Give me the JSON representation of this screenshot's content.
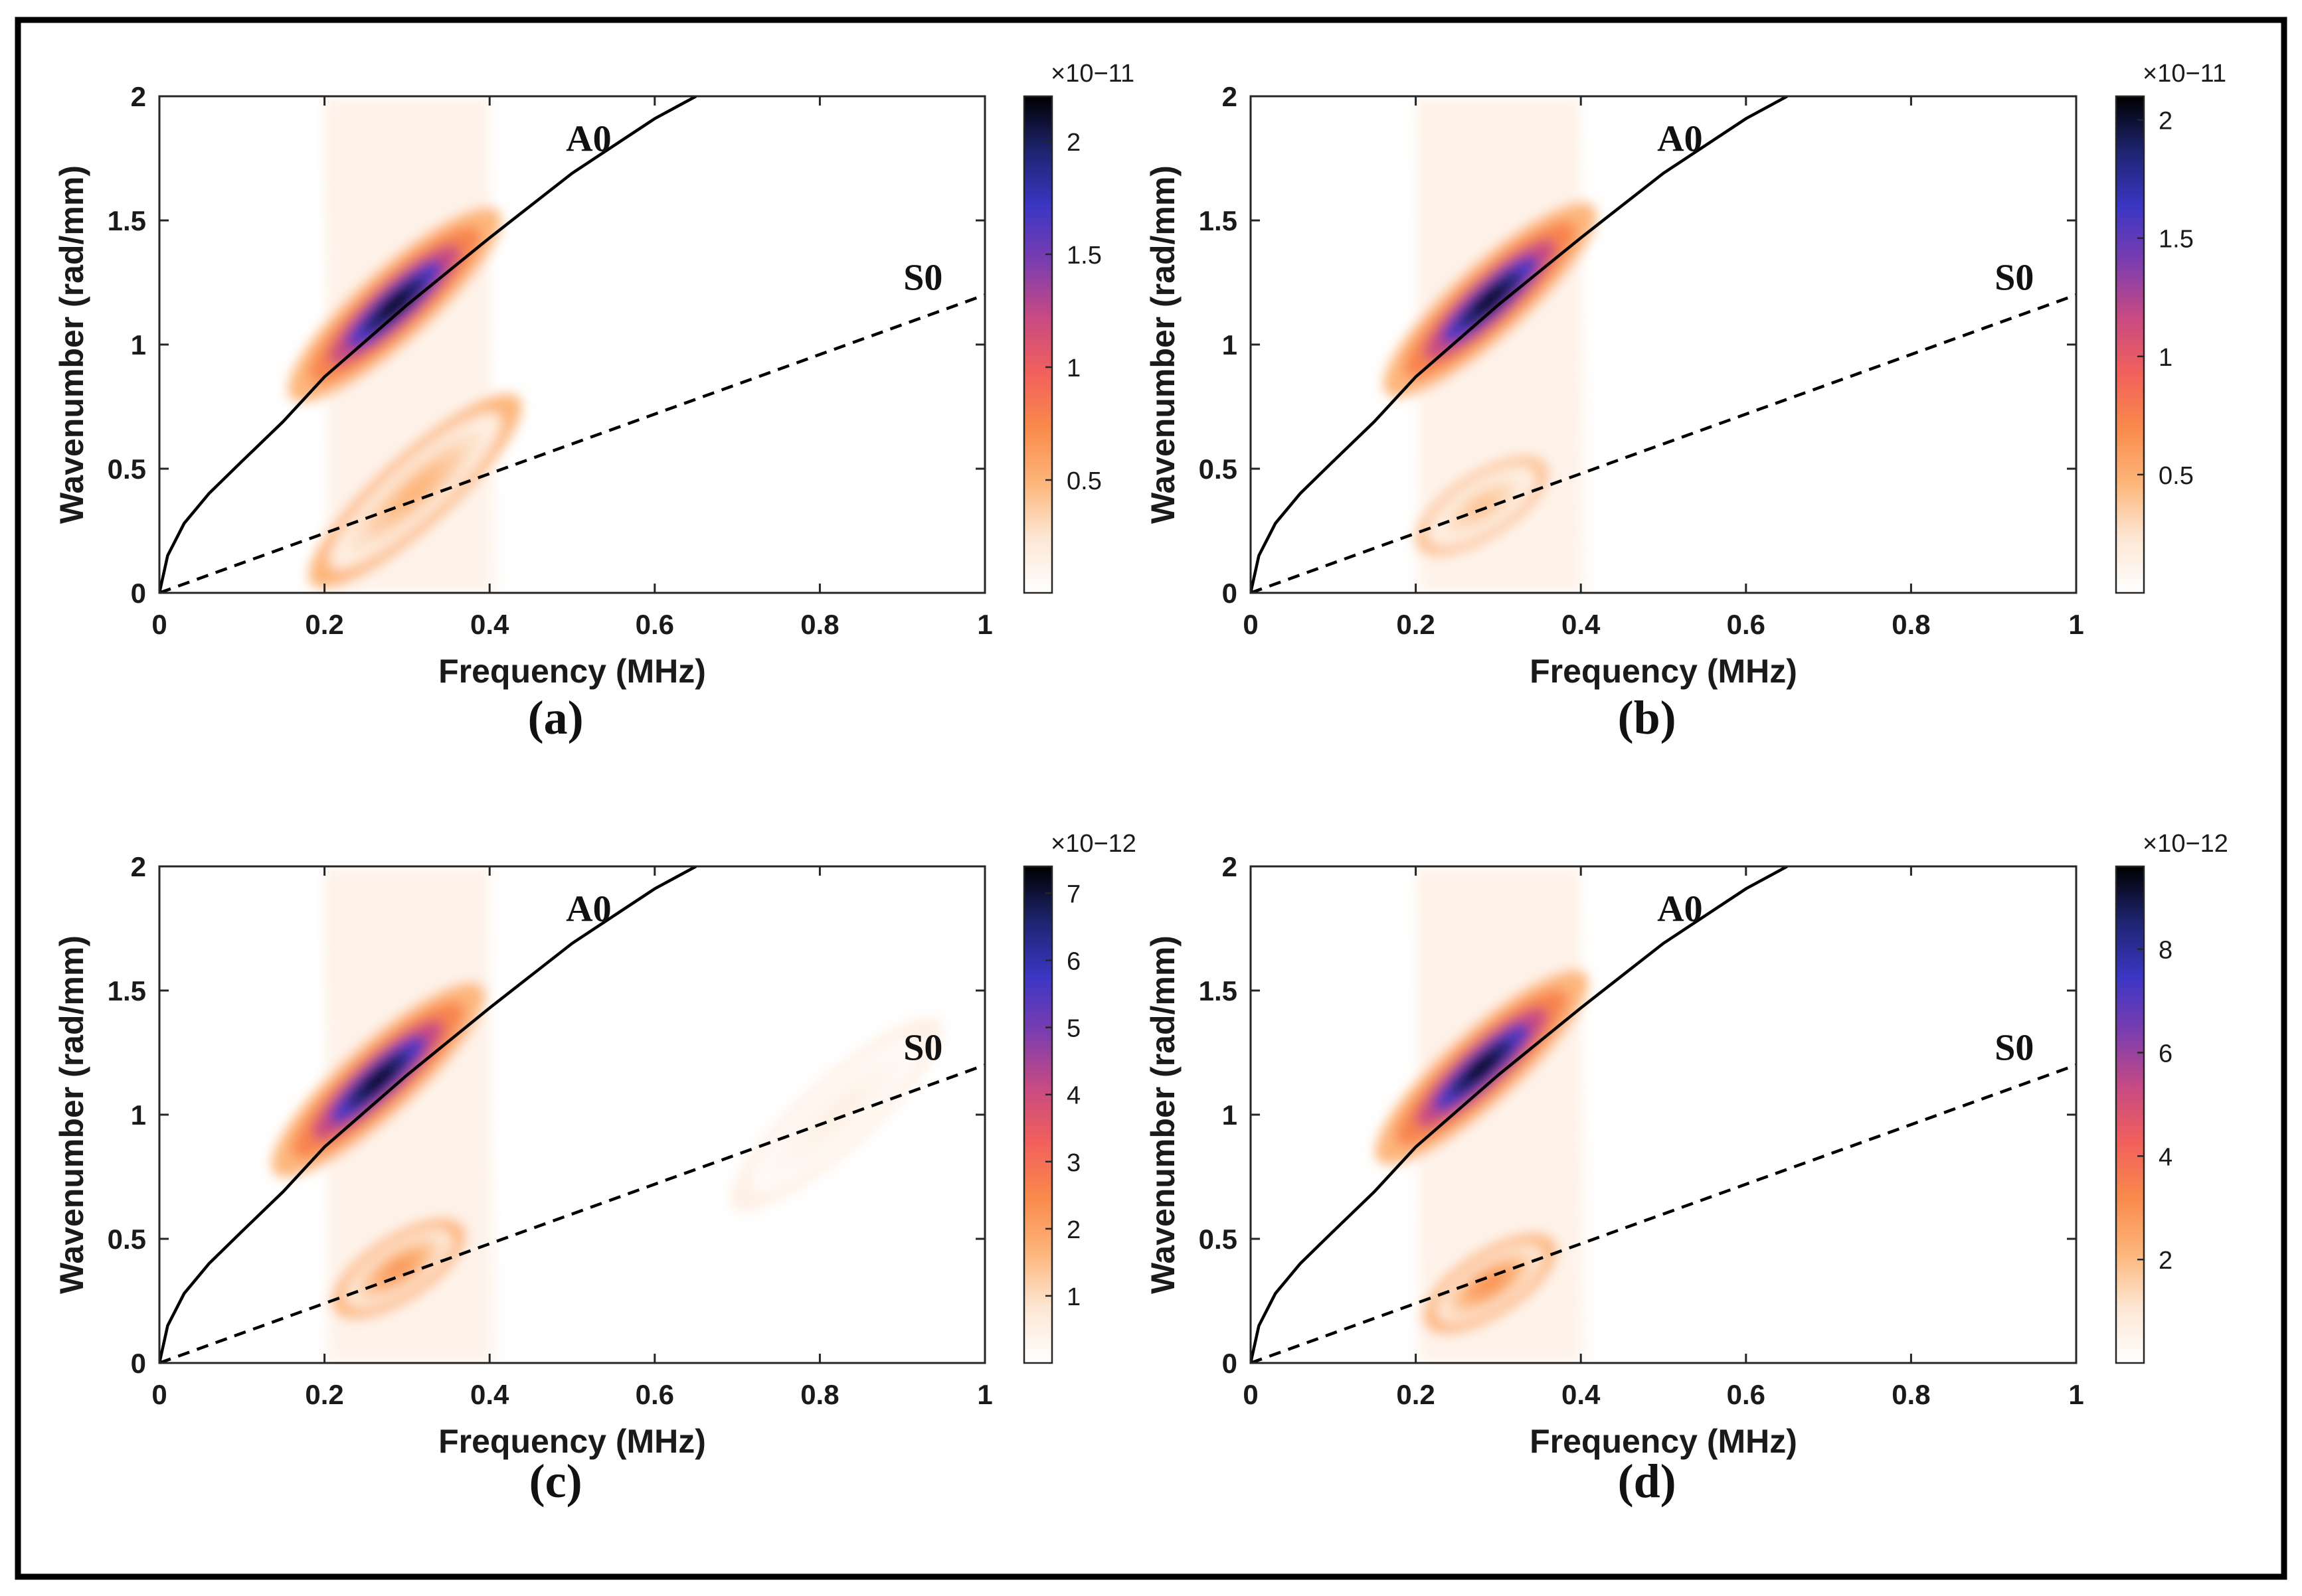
{
  "colormap": [
    "#ffffff",
    "#fde7d4",
    "#fdb57a",
    "#f98a4b",
    "#f2605c",
    "#c64a83",
    "#7b3db0",
    "#3b36c4",
    "#1e2470",
    "#000000"
  ],
  "chart_data": [
    {
      "type": "heatmap",
      "panel_label": "(a)",
      "xlabel": "Frequency (MHz)",
      "ylabel": "Wavenumber (rad/mm)",
      "xlim": [
        0,
        1
      ],
      "ylim": [
        0,
        2
      ],
      "xticks": [
        "0",
        "0.2",
        "0.4",
        "0.6",
        "0.8",
        "1"
      ],
      "yticks": [
        "0",
        "0.5",
        "1",
        "1.5",
        "2"
      ],
      "colorbar": {
        "exponent": "×10−11",
        "ticks": [
          "0.5",
          "1",
          "1.5",
          "2"
        ],
        "tick_values": [
          0.5,
          1,
          1.5,
          2
        ],
        "max": 2.2
      },
      "series": [
        {
          "name": "A0",
          "style": "solid",
          "x": [
            0,
            0.01,
            0.03,
            0.06,
            0.1,
            0.15,
            0.2,
            0.3,
            0.4,
            0.5,
            0.6,
            0.65
          ],
          "y": [
            0,
            0.15,
            0.28,
            0.4,
            0.53,
            0.69,
            0.87,
            1.16,
            1.43,
            1.69,
            1.91,
            2.0
          ]
        },
        {
          "name": "S0",
          "style": "dashed",
          "x": [
            0,
            1
          ],
          "y": [
            0,
            1.2
          ]
        }
      ],
      "hotspots": [
        {
          "x": 0.285,
          "y": 1.16,
          "intensity": 2.2
        },
        {
          "x": 0.31,
          "y": 0.41,
          "intensity": 0.5
        }
      ]
    },
    {
      "type": "heatmap",
      "panel_label": "(b)",
      "xlabel": "Frequency (MHz)",
      "ylabel": "Wavenumber (rad/mm)",
      "xlim": [
        0,
        1
      ],
      "ylim": [
        0,
        2
      ],
      "xticks": [
        "0",
        "0.2",
        "0.4",
        "0.6",
        "0.8",
        "1"
      ],
      "yticks": [
        "0",
        "0.5",
        "1",
        "1.5",
        "2"
      ],
      "colorbar": {
        "exponent": "×10−11",
        "ticks": [
          "0.5",
          "1",
          "1.5",
          "2"
        ],
        "tick_values": [
          0.5,
          1,
          1.5,
          2
        ],
        "max": 2.1
      },
      "series": [
        {
          "name": "A0",
          "style": "solid",
          "x": [
            0,
            0.01,
            0.03,
            0.06,
            0.1,
            0.15,
            0.2,
            0.3,
            0.4,
            0.5,
            0.6,
            0.65
          ],
          "y": [
            0,
            0.15,
            0.28,
            0.4,
            0.53,
            0.69,
            0.87,
            1.16,
            1.43,
            1.69,
            1.91,
            2.0
          ]
        },
        {
          "name": "S0",
          "style": "dashed",
          "x": [
            0,
            1
          ],
          "y": [
            0,
            1.2
          ]
        }
      ],
      "hotspots": [
        {
          "x": 0.29,
          "y": 1.18,
          "intensity": 2.1
        },
        {
          "x": 0.28,
          "y": 0.35,
          "intensity": 0.4
        }
      ]
    },
    {
      "type": "heatmap",
      "panel_label": "(c)",
      "xlabel": "Frequency (MHz)",
      "ylabel": "Wavenumber (rad/mm)",
      "xlim": [
        0,
        1
      ],
      "ylim": [
        0,
        2
      ],
      "xticks": [
        "0",
        "0.2",
        "0.4",
        "0.6",
        "0.8",
        "1"
      ],
      "yticks": [
        "0",
        "0.5",
        "1",
        "1.5",
        "2"
      ],
      "colorbar": {
        "exponent": "×10−12",
        "ticks": [
          "1",
          "2",
          "3",
          "4",
          "5",
          "6",
          "7"
        ],
        "tick_values": [
          1,
          2,
          3,
          4,
          5,
          6,
          7
        ],
        "max": 7.4
      },
      "series": [
        {
          "name": "A0",
          "style": "solid",
          "x": [
            0,
            0.01,
            0.03,
            0.06,
            0.1,
            0.15,
            0.2,
            0.3,
            0.4,
            0.5,
            0.6,
            0.65
          ],
          "y": [
            0,
            0.15,
            0.28,
            0.4,
            0.53,
            0.69,
            0.87,
            1.16,
            1.43,
            1.69,
            1.91,
            2.0
          ]
        },
        {
          "name": "S0",
          "style": "dashed",
          "x": [
            0,
            1
          ],
          "y": [
            0,
            1.2
          ]
        }
      ],
      "hotspots": [
        {
          "x": 0.265,
          "y": 1.14,
          "intensity": 7.4
        },
        {
          "x": 0.29,
          "y": 0.38,
          "intensity": 2.2
        },
        {
          "x": 0.82,
          "y": 1.0,
          "intensity": 0.5
        }
      ]
    },
    {
      "type": "heatmap",
      "panel_label": "(d)",
      "xlabel": "Frequency (MHz)",
      "ylabel": "Wavenumber (rad/mm)",
      "xlim": [
        0,
        1
      ],
      "ylim": [
        0,
        2
      ],
      "xticks": [
        "0",
        "0.2",
        "0.4",
        "0.6",
        "0.8",
        "1"
      ],
      "yticks": [
        "0",
        "0.5",
        "1",
        "1.5",
        "2"
      ],
      "colorbar": {
        "exponent": "×10−12",
        "ticks": [
          "2",
          "4",
          "6",
          "8"
        ],
        "tick_values": [
          2,
          4,
          6,
          8
        ],
        "max": 9.6
      },
      "series": [
        {
          "name": "A0",
          "style": "solid",
          "x": [
            0,
            0.01,
            0.03,
            0.06,
            0.1,
            0.15,
            0.2,
            0.3,
            0.4,
            0.5,
            0.6,
            0.65
          ],
          "y": [
            0,
            0.15,
            0.28,
            0.4,
            0.53,
            0.69,
            0.87,
            1.16,
            1.43,
            1.69,
            1.91,
            2.0
          ]
        },
        {
          "name": "S0",
          "style": "dashed",
          "x": [
            0,
            1
          ],
          "y": [
            0,
            1.2
          ]
        }
      ],
      "hotspots": [
        {
          "x": 0.28,
          "y": 1.19,
          "intensity": 9.6
        },
        {
          "x": 0.29,
          "y": 0.32,
          "intensity": 3.0
        }
      ]
    }
  ]
}
